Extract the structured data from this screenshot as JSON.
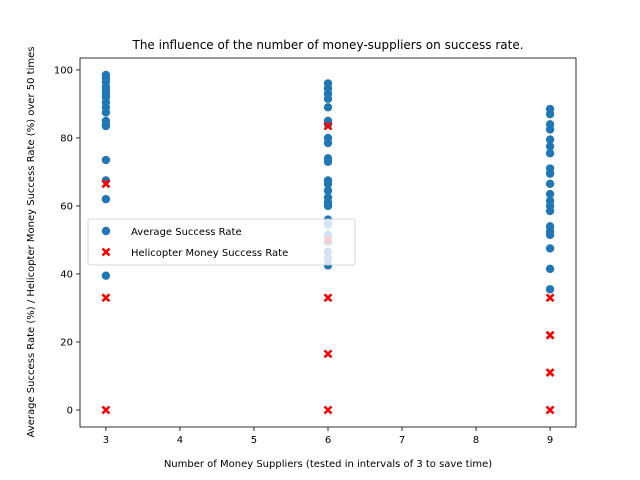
{
  "chart_data": {
    "type": "scatter",
    "title": "The influence of the number of money-suppliers on success rate.",
    "xlabel": "Number of Money Suppliers (tested in intervals of 3 to save time)",
    "ylabel": "Average Success Rate (%) / Helicopter Money Success Rate (%) over 50 times",
    "xlim": [
      2.65,
      9.35
    ],
    "ylim": [
      -5.0,
      103.5
    ],
    "xticks": [
      "3",
      "4",
      "5",
      "6",
      "7",
      "8",
      "9"
    ],
    "yticks": [
      "0",
      "20",
      "40",
      "60",
      "80",
      "100"
    ],
    "grid": false,
    "legend_position": "center-left",
    "series": [
      {
        "name": "Average Success Rate",
        "marker": "circle",
        "color": "#1f77b4",
        "points": [
          [
            3,
            98.5
          ],
          [
            3,
            97.5
          ],
          [
            3,
            96.5
          ],
          [
            3,
            95
          ],
          [
            3,
            94
          ],
          [
            3,
            93
          ],
          [
            3,
            92
          ],
          [
            3,
            90.5
          ],
          [
            3,
            89
          ],
          [
            3,
            87.5
          ],
          [
            3,
            85
          ],
          [
            3,
            84
          ],
          [
            3,
            83.5
          ],
          [
            3,
            73.5
          ],
          [
            3,
            67.5
          ],
          [
            3,
            62
          ],
          [
            3,
            39.5
          ],
          [
            6,
            96
          ],
          [
            6,
            94.5
          ],
          [
            6,
            93
          ],
          [
            6,
            91.5
          ],
          [
            6,
            89
          ],
          [
            6,
            85
          ],
          [
            6,
            84
          ],
          [
            6,
            80
          ],
          [
            6,
            78.5
          ],
          [
            6,
            74
          ],
          [
            6,
            73
          ],
          [
            6,
            67.5
          ],
          [
            6,
            66.5
          ],
          [
            6,
            64.5
          ],
          [
            6,
            62.5
          ],
          [
            6,
            61
          ],
          [
            6,
            60
          ],
          [
            6,
            56
          ],
          [
            6,
            54.5
          ],
          [
            6,
            51.5
          ],
          [
            6,
            49.5
          ],
          [
            6,
            46.5
          ],
          [
            6,
            44.5
          ],
          [
            6,
            42.5
          ],
          [
            9,
            88.5
          ],
          [
            9,
            87
          ],
          [
            9,
            84
          ],
          [
            9,
            82.5
          ],
          [
            9,
            79.5
          ],
          [
            9,
            77.5
          ],
          [
            9,
            75.5
          ],
          [
            9,
            71
          ],
          [
            9,
            69.5
          ],
          [
            9,
            66.5
          ],
          [
            9,
            63.5
          ],
          [
            9,
            61.5
          ],
          [
            9,
            60
          ],
          [
            9,
            58.5
          ],
          [
            9,
            54
          ],
          [
            9,
            52.5
          ],
          [
            9,
            51.5
          ],
          [
            9,
            47.5
          ],
          [
            9,
            41.5
          ],
          [
            9,
            35.5
          ]
        ]
      },
      {
        "name": "Helicopter Money Success Rate",
        "marker": "x",
        "color": "#ff0000",
        "points": [
          [
            3,
            66.5
          ],
          [
            3,
            33
          ],
          [
            3,
            0
          ],
          [
            6,
            83.5
          ],
          [
            6,
            50
          ],
          [
            6,
            33
          ],
          [
            6,
            16.5
          ],
          [
            6,
            0
          ],
          [
            9,
            33
          ],
          [
            9,
            22
          ],
          [
            9,
            11
          ],
          [
            9,
            0
          ]
        ]
      }
    ]
  }
}
